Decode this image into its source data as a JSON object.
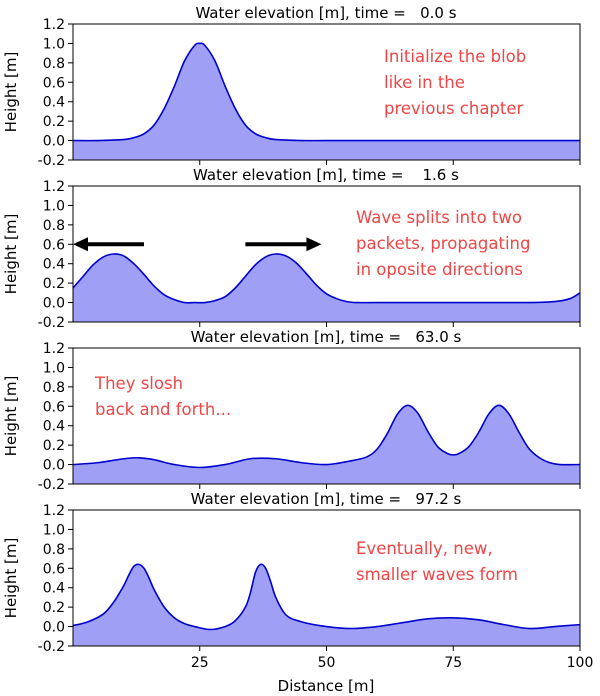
{
  "figure": {
    "xlabel": "Distance [m]",
    "x_ticks": [
      "25",
      "50",
      "75",
      "100"
    ],
    "y_ticks": [
      "1.2",
      "1.0",
      "0.8",
      "0.6",
      "0.4",
      "0.2",
      "0.0",
      "-0.2"
    ]
  },
  "chart_data": [
    {
      "type": "area",
      "title": "Water elevation [m], time =   0.0 s",
      "xlabel": "",
      "ylabel": "Height [m]",
      "xlim": [
        0,
        100
      ],
      "ylim": [
        -0.2,
        1.2
      ],
      "fill_color": "#9f9ff5",
      "line_color": "#0000cc",
      "x": [
        0,
        5,
        10,
        12,
        14,
        16,
        18,
        20,
        22,
        24,
        25,
        26,
        28,
        30,
        32,
        34,
        36,
        38,
        40,
        45,
        50,
        60,
        70,
        80,
        90,
        100
      ],
      "series": [
        {
          "name": "Water elevation",
          "values": [
            0.0,
            0.0,
            0.01,
            0.03,
            0.07,
            0.16,
            0.33,
            0.56,
            0.82,
            0.98,
            1.0,
            0.98,
            0.82,
            0.56,
            0.33,
            0.16,
            0.07,
            0.03,
            0.01,
            0.0,
            0.0,
            0.0,
            0.0,
            0.0,
            0.0,
            0.0
          ]
        }
      ],
      "annotations": [
        {
          "text": [
            "Initialize the blob",
            "like in the",
            "previous chapter"
          ]
        }
      ]
    },
    {
      "type": "area",
      "title": "Water elevation [m], time =    1.6 s",
      "xlabel": "",
      "ylabel": "Height [m]",
      "xlim": [
        0,
        100
      ],
      "ylim": [
        -0.2,
        1.2
      ],
      "fill_color": "#9f9ff5",
      "line_color": "#0000cc",
      "x": [
        0,
        2,
        4,
        6,
        8,
        10,
        12,
        14,
        16,
        18,
        20,
        22,
        24,
        26,
        28,
        30,
        32,
        34,
        36,
        38,
        40,
        42,
        44,
        46,
        48,
        50,
        52,
        54,
        56,
        60,
        70,
        80,
        90,
        95,
        98,
        100
      ],
      "series": [
        {
          "name": "Water elevation",
          "values": [
            0.15,
            0.27,
            0.39,
            0.47,
            0.5,
            0.48,
            0.4,
            0.29,
            0.17,
            0.08,
            0.03,
            0.0,
            0.0,
            0.0,
            0.02,
            0.06,
            0.15,
            0.27,
            0.39,
            0.47,
            0.5,
            0.48,
            0.41,
            0.3,
            0.18,
            0.09,
            0.04,
            0.01,
            0.0,
            0.0,
            0.0,
            0.0,
            0.0,
            0.01,
            0.04,
            0.1
          ]
        }
      ],
      "annotations": [
        {
          "text": [
            "Wave splits into two",
            "packets, propagating",
            "in oposite directions"
          ]
        }
      ],
      "arrows": [
        {
          "direction": "left",
          "from_x": 14,
          "to_x": 0,
          "y": 0.6
        },
        {
          "direction": "right",
          "from_x": 34,
          "to_x": 49,
          "y": 0.6
        }
      ]
    },
    {
      "type": "area",
      "title": "Water elevation [m], time =   63.0 s",
      "xlabel": "",
      "ylabel": "Height [m]",
      "xlim": [
        0,
        100
      ],
      "ylim": [
        -0.2,
        1.2
      ],
      "fill_color": "#9f9ff5",
      "line_color": "#0000cc",
      "x": [
        0,
        5,
        10,
        13,
        16,
        20,
        25,
        30,
        35,
        40,
        45,
        50,
        55,
        58,
        60,
        62,
        64,
        66,
        68,
        70,
        72,
        74,
        75,
        76,
        78,
        80,
        82,
        84,
        86,
        88,
        90,
        92,
        94,
        96,
        100
      ],
      "series": [
        {
          "name": "Water elevation",
          "values": [
            0.0,
            0.02,
            0.06,
            0.07,
            0.05,
            0.0,
            -0.03,
            0.0,
            0.06,
            0.06,
            0.02,
            0.0,
            0.04,
            0.08,
            0.16,
            0.32,
            0.52,
            0.61,
            0.53,
            0.34,
            0.18,
            0.11,
            0.1,
            0.11,
            0.18,
            0.33,
            0.52,
            0.61,
            0.52,
            0.33,
            0.16,
            0.07,
            0.02,
            0.0,
            0.0
          ]
        }
      ],
      "annotations": [
        {
          "text": [
            "They slosh",
            "back and forth..."
          ]
        }
      ]
    },
    {
      "type": "area",
      "title": "Water elevation [m], time =   97.2 s",
      "xlabel": "Distance [m]",
      "ylabel": "Height [m]",
      "xlim": [
        0,
        100
      ],
      "ylim": [
        -0.2,
        1.2
      ],
      "fill_color": "#9f9ff5",
      "line_color": "#0000cc",
      "x": [
        0,
        3,
        6,
        8,
        10,
        11,
        12,
        13,
        14,
        15,
        16,
        18,
        20,
        22,
        24,
        27,
        30,
        32,
        34,
        35,
        36,
        37,
        38,
        39,
        40,
        42,
        45,
        50,
        55,
        60,
        65,
        70,
        75,
        80,
        85,
        90,
        95,
        100
      ],
      "series": [
        {
          "name": "Water elevation",
          "values": [
            0.01,
            0.05,
            0.13,
            0.25,
            0.42,
            0.53,
            0.62,
            0.64,
            0.6,
            0.5,
            0.38,
            0.2,
            0.09,
            0.03,
            0.0,
            -0.03,
            0.0,
            0.06,
            0.2,
            0.35,
            0.56,
            0.64,
            0.6,
            0.46,
            0.3,
            0.12,
            0.05,
            0.0,
            -0.02,
            0.0,
            0.04,
            0.08,
            0.09,
            0.07,
            0.02,
            -0.02,
            0.0,
            0.02
          ]
        }
      ],
      "annotations": [
        {
          "text": [
            "Eventually, new,",
            "smaller waves form"
          ]
        }
      ]
    }
  ]
}
